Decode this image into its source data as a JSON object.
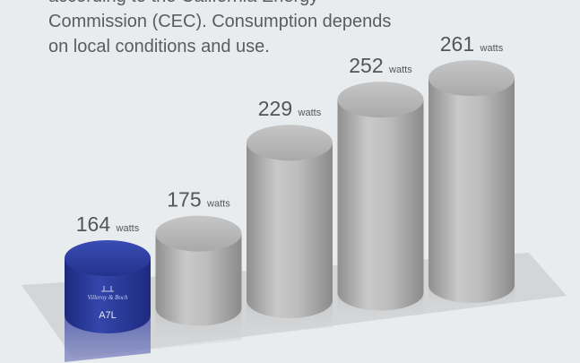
{
  "intro": {
    "lines": [
      "according to the California Energy",
      "Commission (CEC). Consumption depends",
      "on local conditions and use."
    ]
  },
  "chart_data": {
    "type": "bar",
    "categories": [
      "A7L",
      "",
      "",
      "",
      ""
    ],
    "values": [
      164,
      175,
      229,
      252,
      261
    ],
    "unit": "watts",
    "highlight_index": 0,
    "highlight_label": "A7L",
    "brand_text": "Villeroy & Boch",
    "colors": {
      "highlight": "#2e3f9e",
      "bars": "#b9b9b9",
      "floor": "#d3d5d7",
      "background": "#e9ecee"
    }
  }
}
